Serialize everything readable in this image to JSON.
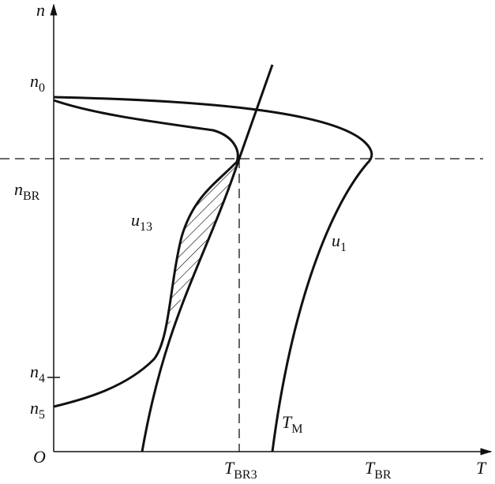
{
  "axes": {
    "y": {
      "base": "n"
    },
    "x": {
      "base": "T"
    },
    "origin": {
      "base": "O"
    }
  },
  "labels": [
    {
      "base": "n",
      "sub": "0"
    },
    {
      "base": "n",
      "sub": "BR"
    },
    {
      "base": "n",
      "sub": "4"
    },
    {
      "base": "n",
      "sub": "5"
    },
    {
      "base": "T",
      "sub": "BR3"
    },
    {
      "base": "T",
      "sub": "BR"
    },
    {
      "base": "u",
      "sub": "13"
    },
    {
      "base": "u",
      "sub": "1"
    },
    {
      "base": "T",
      "sub": "M"
    }
  ]
}
